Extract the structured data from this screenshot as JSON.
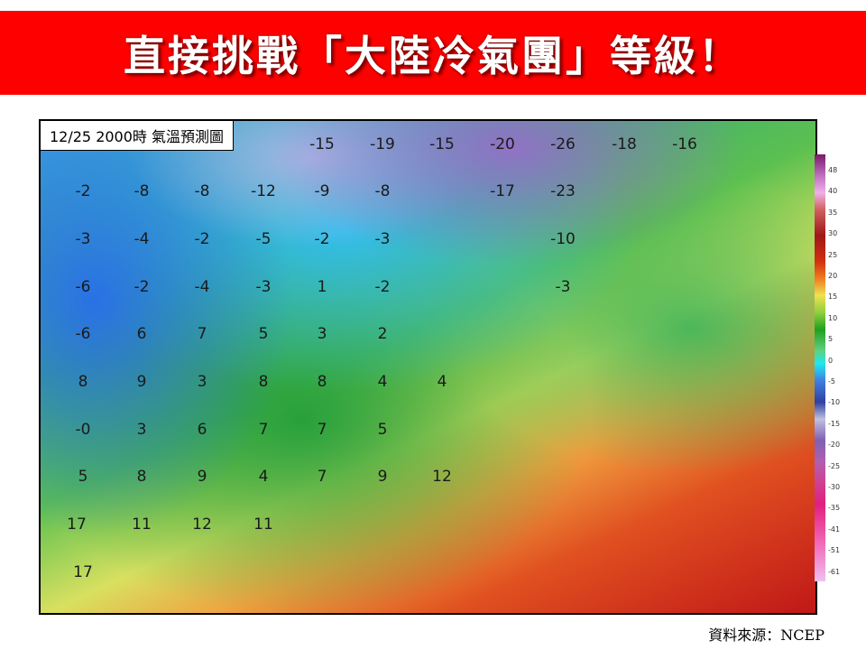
{
  "banner": {
    "title": "直接挑戰「大陸冷氣團」等級！",
    "color": "#ff0000"
  },
  "map": {
    "label": "12/25 2000時  氣溫預測圖",
    "temperature_rows": [
      [
        "",
        "",
        "",
        "",
        "-15",
        "-19",
        "-15",
        "-20",
        "-26",
        "-18",
        "-16"
      ],
      [
        "-2",
        "-8",
        "-8",
        "-12",
        "-9",
        "-8",
        "",
        "-17",
        "-23",
        "",
        ""
      ],
      [
        "-3",
        "-4",
        "-2",
        "-5",
        "-2",
        "-3",
        "",
        "",
        "-10",
        "",
        ""
      ],
      [
        "-6",
        "-2",
        "-4",
        "-3",
        "1",
        "-2",
        "",
        "",
        "-3",
        "",
        ""
      ],
      [
        "-6",
        "6",
        "7",
        "5",
        "3",
        "2"
      ],
      [
        "8",
        "9",
        "3",
        "8",
        "8",
        "4",
        "4"
      ],
      [
        "-0",
        "3",
        "6",
        "7",
        "7",
        "5"
      ],
      [
        "5",
        "8",
        "9",
        "4",
        "7",
        "9",
        "12"
      ],
      [
        "17",
        "11",
        "12",
        "11"
      ],
      [
        "17"
      ]
    ]
  },
  "colorbar": {
    "ticks": [
      "48",
      "40",
      "35",
      "30",
      "25",
      "20",
      "15",
      "10",
      "5",
      "0",
      "-5",
      "-10",
      "-15",
      "-20",
      "-25",
      "-30",
      "-35",
      "-41",
      "-51",
      "-61"
    ]
  },
  "source": "資料來源：NCEP"
}
